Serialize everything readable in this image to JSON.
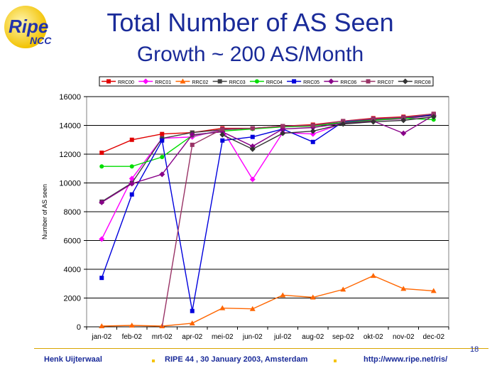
{
  "logo": {
    "word1": "Ripe",
    "word2": "NCC"
  },
  "header": {
    "title": "Total Number of AS Seen",
    "subtitle": "Growth ~ 200 AS/Month"
  },
  "footer": {
    "author": "Henk Uijterwaal",
    "event": "RIPE 44 ,  30 January 2003, Amsterdam",
    "url": "http://www.ripe.net/ris/",
    "page": "18"
  },
  "chart_data": {
    "type": "line",
    "title": "",
    "xlabel": "",
    "ylabel": "Number of AS seen",
    "ylim": [
      0,
      16000
    ],
    "yticks": [
      0,
      2000,
      4000,
      6000,
      8000,
      10000,
      12000,
      14000,
      16000
    ],
    "grid": "horizontal",
    "legend": "top",
    "categories": [
      "jan-02",
      "feb-02",
      "mrt-02",
      "apr-02",
      "mei-02",
      "jun-02",
      "jul-02",
      "aug-02",
      "sep-02",
      "okt-02",
      "nov-02",
      "dec-02"
    ],
    "series": [
      {
        "name": "RRC00",
        "color": "#e00000",
        "marker": "square",
        "values": [
          12100,
          13000,
          13400,
          13500,
          13800,
          13800,
          13950,
          14050,
          14300,
          14500,
          14600,
          14800
        ]
      },
      {
        "name": "RRC01",
        "color": "#ff00ff",
        "marker": "diamond",
        "values": [
          6100,
          10300,
          13100,
          13200,
          13700,
          10250,
          13500,
          13400,
          14150,
          14350,
          14450,
          14700
        ]
      },
      {
        "name": "RRC02",
        "color": "#ff6600",
        "marker": "triangle",
        "values": [
          50,
          100,
          50,
          250,
          1300,
          1250,
          2200,
          2050,
          2600,
          3550,
          2650,
          2500
        ]
      },
      {
        "name": "RRC03",
        "color": "#404040",
        "marker": "square",
        "values": [
          8700,
          10000,
          13100,
          13500,
          13700,
          13800,
          13900,
          14000,
          14200,
          14400,
          14500,
          14700
        ]
      },
      {
        "name": "RRC04",
        "color": "#00dd00",
        "marker": "circle",
        "values": [
          11150,
          11150,
          11800,
          13300,
          13600,
          13750,
          13900,
          13950,
          14200,
          14350,
          14500,
          14400
        ]
      },
      {
        "name": "RRC05",
        "color": "#0000dd",
        "marker": "square",
        "values": [
          3400,
          9200,
          12950,
          1100,
          12950,
          13200,
          13750,
          12850,
          14250,
          14450,
          14550,
          14750
        ]
      },
      {
        "name": "RRC06",
        "color": "#880088",
        "marker": "diamond",
        "values": [
          8650,
          9950,
          10600,
          13350,
          13550,
          12550,
          13750,
          13850,
          14150,
          14300,
          13450,
          14700
        ]
      },
      {
        "name": "RRC07",
        "color": "#993366",
        "marker": "square",
        "values": [
          null,
          null,
          0,
          12650,
          13750,
          13800,
          13950,
          14000,
          14300,
          14450,
          14550,
          14800
        ]
      },
      {
        "name": "RRC08",
        "color": "#333333",
        "marker": "diamond",
        "values": [
          null,
          null,
          null,
          null,
          13350,
          12350,
          13450,
          13600,
          14100,
          14250,
          14350,
          14600
        ]
      }
    ]
  }
}
